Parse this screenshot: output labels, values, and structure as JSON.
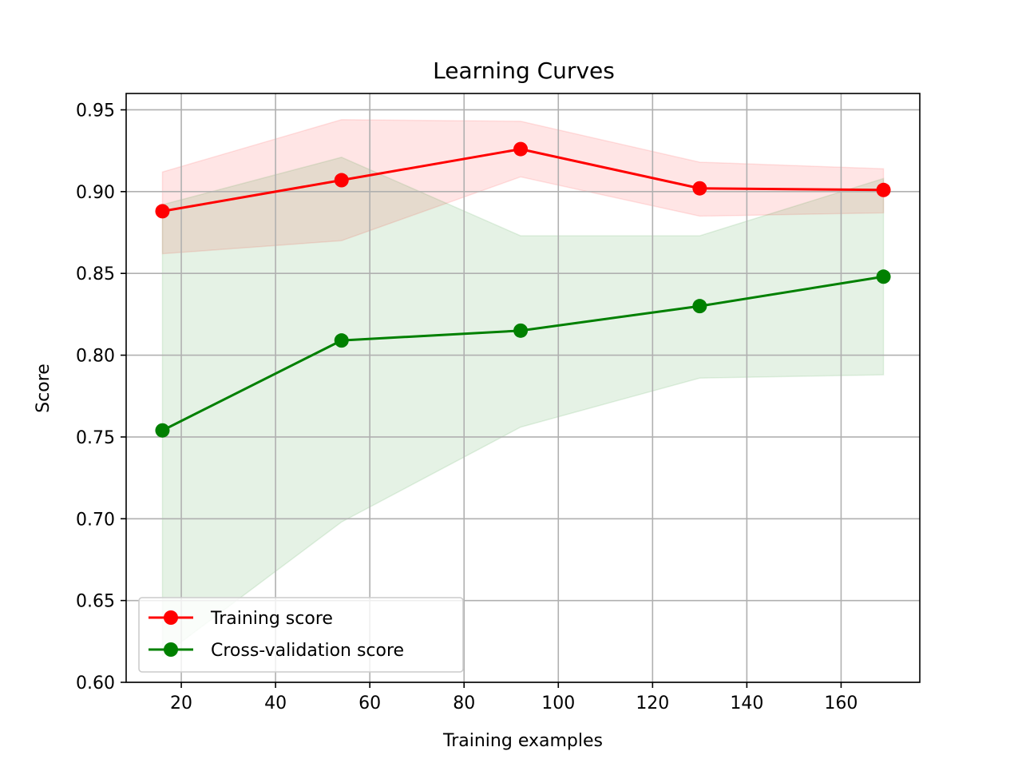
{
  "chart_data": {
    "type": "line",
    "title": "Learning Curves",
    "xlabel": "Training examples",
    "ylabel": "Score",
    "xlim": [
      8.3,
      176.7
    ],
    "ylim": [
      0.6,
      0.96
    ],
    "xticks": [
      20,
      40,
      60,
      80,
      100,
      120,
      140,
      160
    ],
    "yticks": [
      0.6,
      0.65,
      0.7,
      0.75,
      0.8,
      0.85,
      0.9,
      0.95
    ],
    "xtick_labels": [
      "20",
      "40",
      "60",
      "80",
      "100",
      "120",
      "140",
      "160"
    ],
    "ytick_labels": [
      "0.60",
      "0.65",
      "0.70",
      "0.75",
      "0.80",
      "0.85",
      "0.90",
      "0.95"
    ],
    "grid": true,
    "legend_position": "bottom-left",
    "x": [
      16,
      54,
      92,
      130,
      169
    ],
    "series": [
      {
        "name": "Training score",
        "color": "#ff0000",
        "values": [
          0.888,
          0.907,
          0.926,
          0.902,
          0.901
        ],
        "band_upper": [
          0.912,
          0.944,
          0.943,
          0.918,
          0.914
        ],
        "band_lower": [
          0.862,
          0.87,
          0.909,
          0.885,
          0.887
        ],
        "band_color": "#ff0000"
      },
      {
        "name": "Cross-validation score",
        "color": "#008000",
        "values": [
          0.754,
          0.809,
          0.815,
          0.83,
          0.848
        ],
        "band_upper": [
          0.892,
          0.921,
          0.873,
          0.873,
          0.908
        ],
        "band_lower": [
          0.616,
          0.698,
          0.756,
          0.786,
          0.788
        ],
        "band_color": "#008000"
      }
    ]
  }
}
